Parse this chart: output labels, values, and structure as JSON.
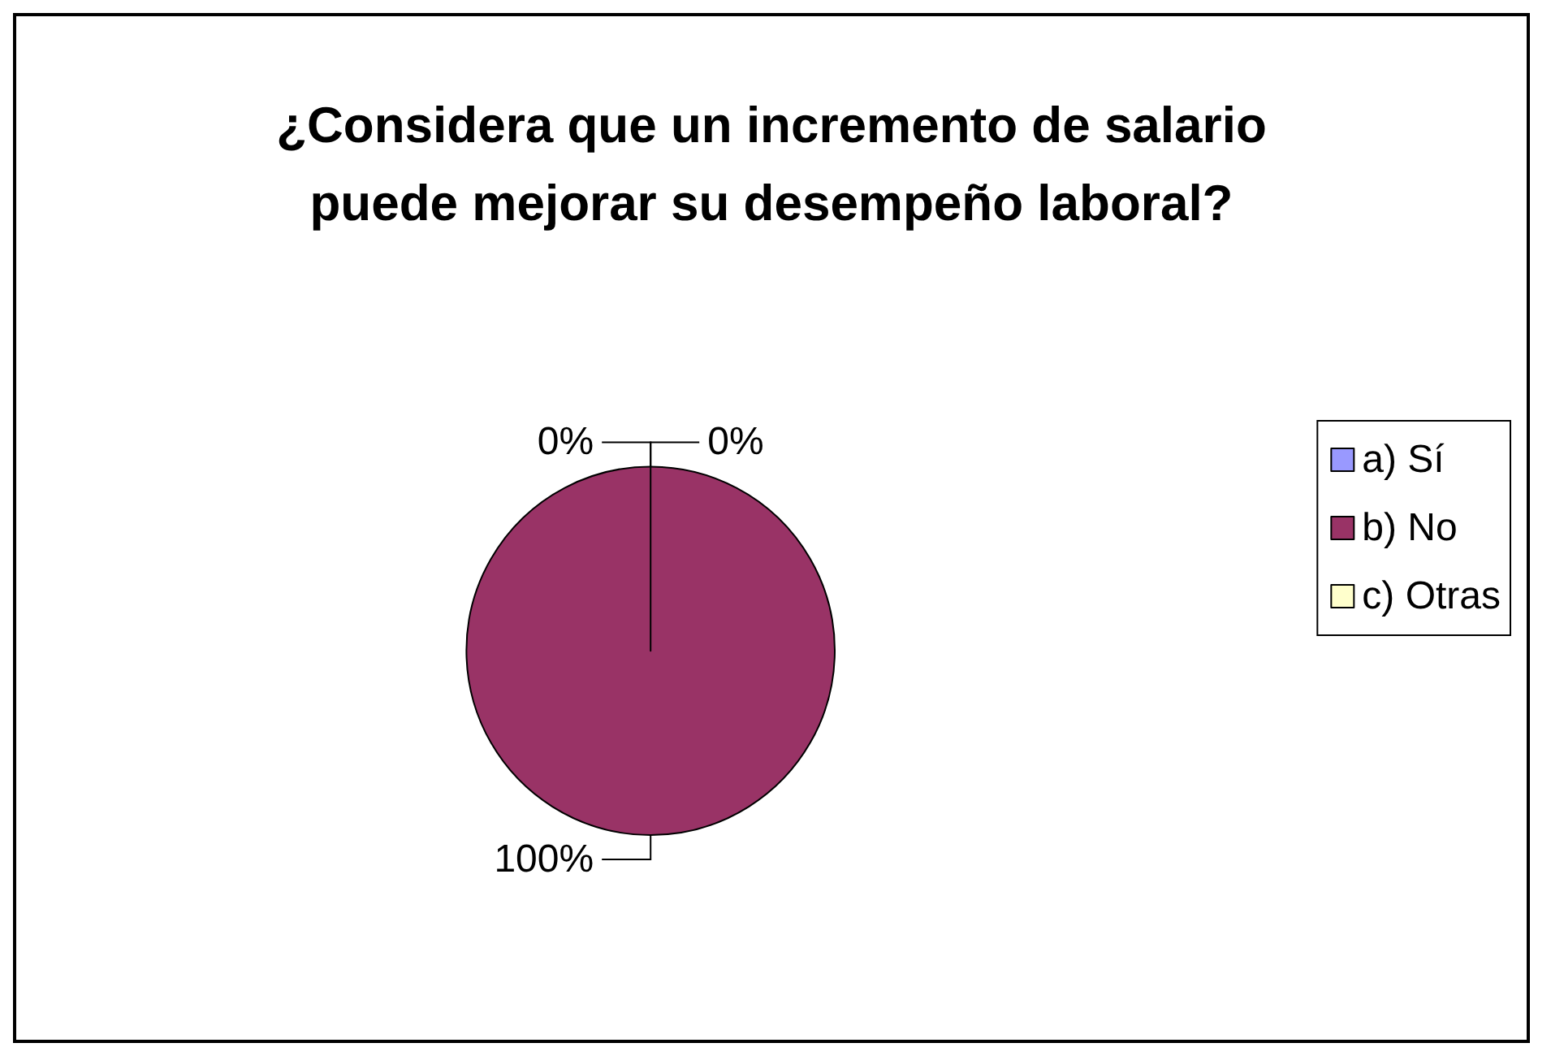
{
  "chart_data": {
    "type": "pie",
    "title": "¿Considera que un incremento de salario\npuede mejorar su desempeño laboral?",
    "categories": [
      "a) Sí",
      "b) No",
      "c) Otras"
    ],
    "values": [
      0,
      100,
      0
    ],
    "colors": [
      "#9999ff",
      "#993366",
      "#ffffcc"
    ],
    "value_labels": [
      "0%",
      "100%",
      "0%"
    ],
    "legend": "right"
  }
}
